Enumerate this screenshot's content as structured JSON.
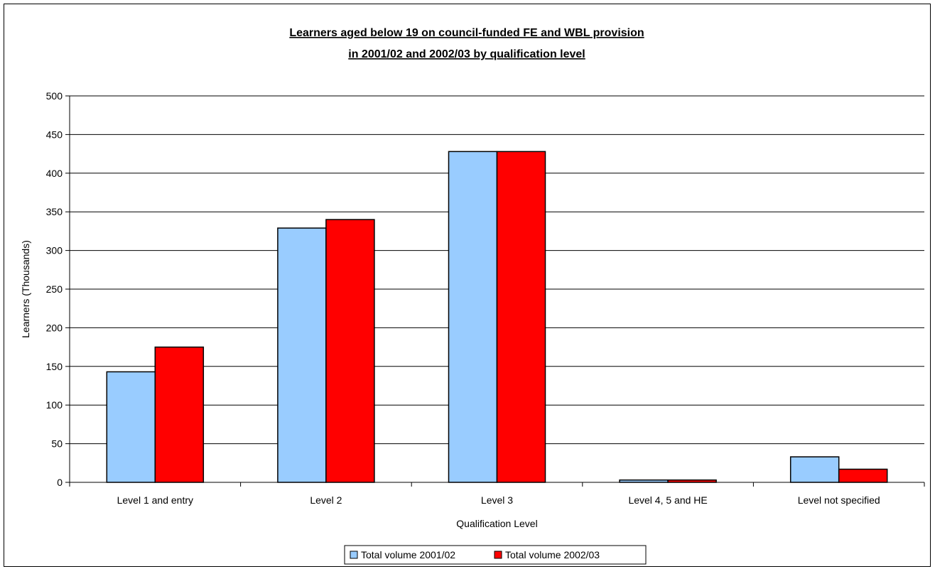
{
  "chart_data": {
    "type": "bar",
    "title_lines": [
      "Learners aged below 19 on council-funded FE and WBL provision",
      "in 2001/02 and 2002/03 by qualification level"
    ],
    "xlabel": "Qualification Level",
    "ylabel": "Learners (Thousands)",
    "ylim": [
      0,
      500
    ],
    "yticks": [
      0,
      50,
      100,
      150,
      200,
      250,
      300,
      350,
      400,
      450,
      500
    ],
    "grid": true,
    "legend_position": "bottom",
    "categories": [
      "Level 1 and entry",
      "Level 2",
      "Level 3",
      "Level 4, 5 and HE",
      "Level not specified"
    ],
    "series": [
      {
        "name": "Total volume 2001/02",
        "color": "#99ccff",
        "values": [
          143,
          329,
          428,
          3,
          33
        ]
      },
      {
        "name": "Total volume 2002/03",
        "color": "#ff0000",
        "values": [
          175,
          340,
          428,
          3,
          17
        ]
      }
    ]
  }
}
